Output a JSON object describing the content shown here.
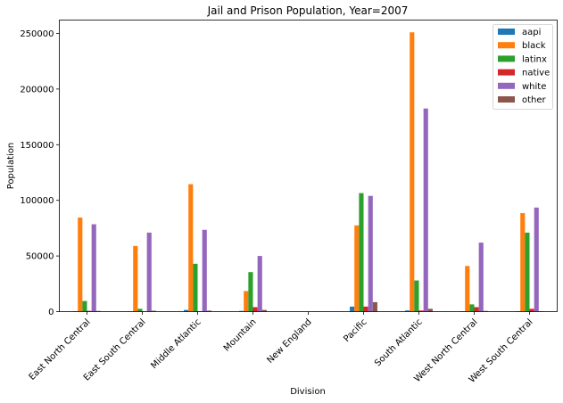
{
  "chart_data": {
    "type": "bar",
    "title": "Jail and Prison Population, Year=2007",
    "xlabel": "Division",
    "ylabel": "Population",
    "ylim": [
      0,
      262000
    ],
    "yticks": [
      0,
      50000,
      100000,
      150000,
      200000,
      250000
    ],
    "grid": false,
    "legend_position": "top-right",
    "categories": [
      "East North Central",
      "East South Central",
      "Middle Atlantic",
      "Mountain",
      "New England",
      "Pacific",
      "South Atlantic",
      "West North Central",
      "West South Central"
    ],
    "series": [
      {
        "name": "aapi",
        "color": "#1f77b4",
        "values": [
          400,
          200,
          1500,
          600,
          0,
          4500,
          1000,
          400,
          400
        ]
      },
      {
        "name": "black",
        "color": "#ff7f0e",
        "values": [
          84500,
          59000,
          114500,
          18500,
          0,
          77500,
          251000,
          41000,
          88500
        ]
      },
      {
        "name": "latinx",
        "color": "#2ca02c",
        "values": [
          9500,
          2500,
          43000,
          35500,
          0,
          106500,
          28000,
          6500,
          71000
        ]
      },
      {
        "name": "native",
        "color": "#d62728",
        "values": [
          700,
          200,
          400,
          4000,
          0,
          4500,
          1000,
          4000,
          2500
        ]
      },
      {
        "name": "white",
        "color": "#9467bd",
        "values": [
          78500,
          71000,
          73500,
          50000,
          0,
          104000,
          182500,
          62000,
          93500
        ]
      },
      {
        "name": "other",
        "color": "#8c564b",
        "values": [
          600,
          800,
          900,
          1500,
          0,
          8500,
          2500,
          600,
          400
        ]
      }
    ]
  }
}
